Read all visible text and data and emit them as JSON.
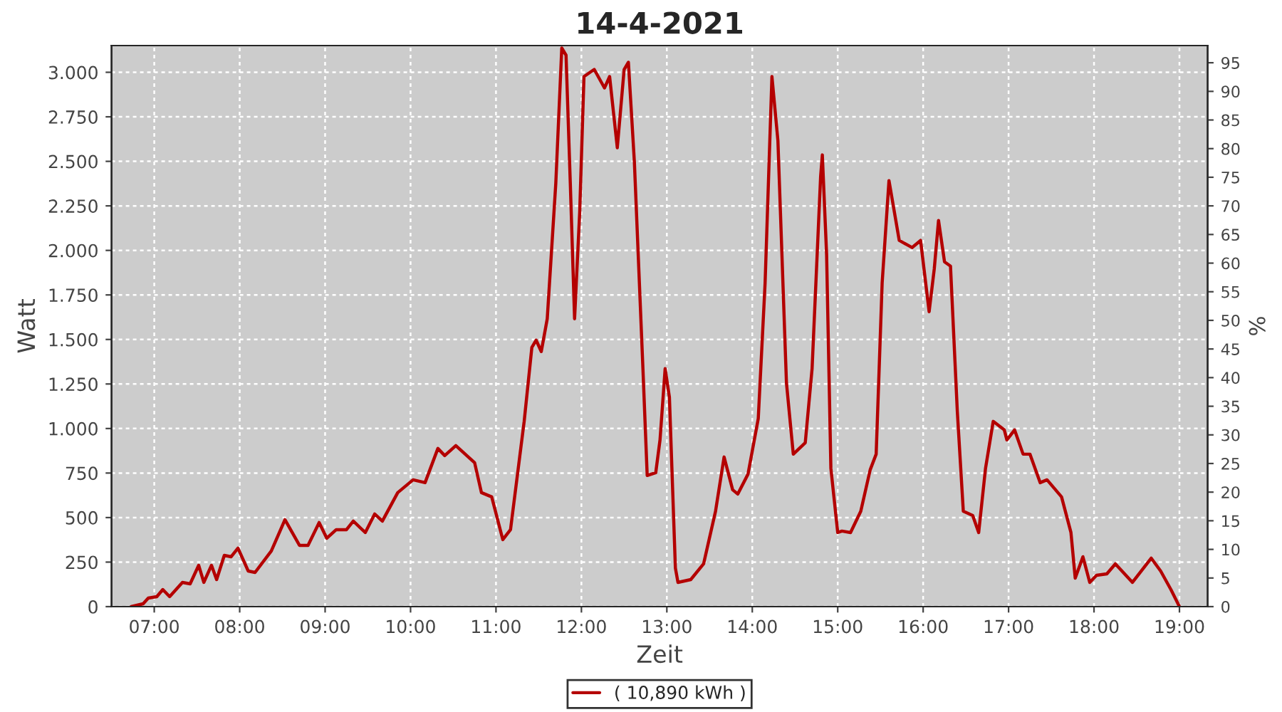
{
  "chart_data": {
    "type": "line",
    "title": "14-4-2021",
    "xlabel": "Zeit",
    "ylabel": "Watt",
    "y2label": "%",
    "x": [
      6.73,
      6.87,
      6.93,
      7.03,
      7.1,
      7.18,
      7.33,
      7.42,
      7.52,
      7.58,
      7.67,
      7.73,
      7.82,
      7.9,
      7.98,
      8.1,
      8.18,
      8.37,
      8.53,
      8.7,
      8.8,
      8.93,
      9.02,
      9.13,
      9.25,
      9.33,
      9.47,
      9.58,
      9.67,
      9.85,
      10.03,
      10.17,
      10.32,
      10.4,
      10.53,
      10.75,
      10.83,
      10.95,
      11.08,
      11.17,
      11.33,
      11.42,
      11.47,
      11.53,
      11.6,
      11.7,
      11.77,
      11.82,
      11.87,
      11.92,
      11.98,
      12.03,
      12.15,
      12.27,
      12.33,
      12.42,
      12.5,
      12.55,
      12.62,
      12.72,
      12.77,
      12.87,
      12.92,
      12.98,
      13.03,
      13.1,
      13.13,
      13.28,
      13.43,
      13.57,
      13.67,
      13.77,
      13.83,
      13.95,
      14.07,
      14.15,
      14.23,
      14.3,
      14.4,
      14.48,
      14.62,
      14.7,
      14.8,
      14.82,
      14.87,
      14.92,
      15.0,
      15.05,
      15.15,
      15.27,
      15.38,
      15.45,
      15.52,
      15.6,
      15.72,
      15.87,
      15.97,
      16.07,
      16.13,
      16.18,
      16.25,
      16.32,
      16.4,
      16.47,
      16.58,
      16.65,
      16.73,
      16.82,
      16.95,
      16.98,
      17.07,
      17.17,
      17.25,
      17.37,
      17.45,
      17.62,
      17.73,
      17.78,
      17.87,
      17.95,
      18.03,
      18.15,
      18.25,
      18.45,
      18.67,
      18.78,
      18.9,
      19.0
    ],
    "series": [
      {
        "name": "( 10,890 kWh )",
        "color": "#b40000",
        "values": [
          0,
          16,
          48,
          56,
          96,
          56,
          136,
          128,
          232,
          136,
          232,
          152,
          288,
          280,
          328,
          200,
          192,
          312,
          488,
          344,
          344,
          472,
          384,
          432,
          432,
          480,
          416,
          520,
          480,
          640,
          712,
          696,
          888,
          848,
          904,
          808,
          640,
          616,
          376,
          432,
          1040,
          1456,
          1496,
          1432,
          1616,
          2376,
          3136,
          3096,
          2376,
          1616,
          2216,
          2976,
          3016,
          2912,
          2976,
          2576,
          3016,
          3056,
          2496,
          1336,
          736,
          752,
          936,
          1336,
          1176,
          216,
          136,
          152,
          240,
          536,
          840,
          656,
          632,
          744,
          1056,
          1816,
          2976,
          2616,
          1256,
          856,
          920,
          1336,
          2416,
          2536,
          1976,
          776,
          416,
          424,
          416,
          536,
          768,
          856,
          1816,
          2392,
          2056,
          2016,
          2056,
          1656,
          1896,
          2168,
          1936,
          1912,
          1096,
          536,
          512,
          416,
          776,
          1040,
          992,
          936,
          992,
          856,
          856,
          696,
          712,
          616,
          416,
          160,
          280,
          136,
          176,
          184,
          240,
          136,
          272,
          200,
          96,
          0
        ]
      }
    ],
    "xlim": [
      6.5,
      19.33
    ],
    "xticks": [
      {
        "value": 7,
        "label": "07:00"
      },
      {
        "value": 8,
        "label": "08:00"
      },
      {
        "value": 9,
        "label": "09:00"
      },
      {
        "value": 10,
        "label": "10:00"
      },
      {
        "value": 11,
        "label": "11:00"
      },
      {
        "value": 12,
        "label": "12:00"
      },
      {
        "value": 13,
        "label": "13:00"
      },
      {
        "value": 14,
        "label": "14:00"
      },
      {
        "value": 15,
        "label": "15:00"
      },
      {
        "value": 16,
        "label": "16:00"
      },
      {
        "value": 17,
        "label": "17:00"
      },
      {
        "value": 18,
        "label": "18:00"
      },
      {
        "value": 19,
        "label": "19:00"
      }
    ],
    "ylim": [
      0,
      3150
    ],
    "yticks": [
      0,
      {
        "value": 250,
        "label": "250"
      },
      {
        "value": 500,
        "label": "500"
      },
      {
        "value": 750,
        "label": "750"
      },
      {
        "value": 1000,
        "label": "1.000"
      },
      {
        "value": 1250,
        "label": "1.250"
      },
      {
        "value": 1500,
        "label": "1.500"
      },
      {
        "value": 1750,
        "label": "1.750"
      },
      {
        "value": 2000,
        "label": "2.000"
      },
      {
        "value": 2250,
        "label": "2.250"
      },
      {
        "value": 2500,
        "label": "2.500"
      },
      {
        "value": 2750,
        "label": "2.750"
      },
      {
        "value": 3000,
        "label": "3.000"
      }
    ],
    "y2lim": [
      0,
      98
    ],
    "y2ticks": [
      0,
      5,
      10,
      15,
      20,
      25,
      30,
      35,
      40,
      45,
      50,
      55,
      60,
      65,
      70,
      75,
      80,
      85,
      90,
      95
    ],
    "grid": true,
    "legend": "bottom",
    "marker": "none",
    "line_style": "solid"
  }
}
